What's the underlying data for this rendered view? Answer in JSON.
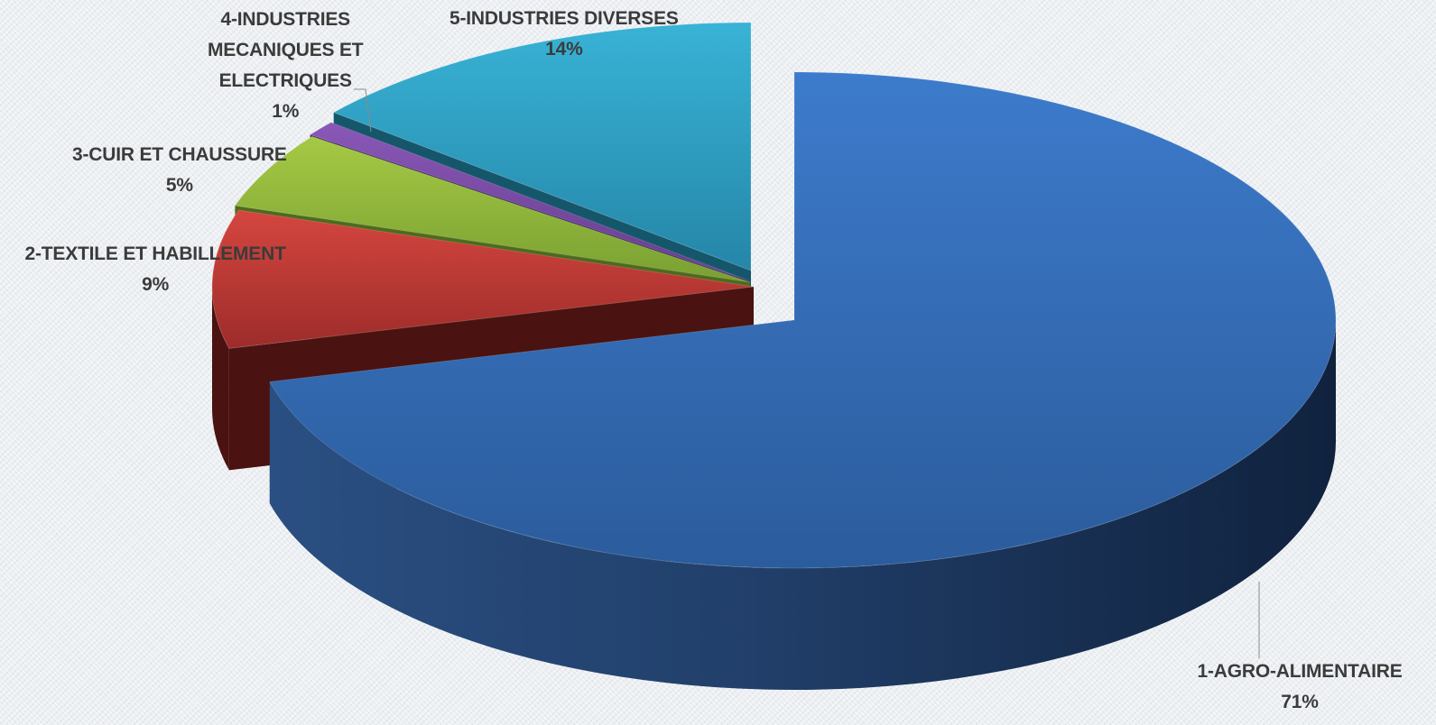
{
  "chart_data": {
    "type": "pie",
    "style": "3d-exploded",
    "categories": [
      "1-AGRO-ALIMENTAIRE",
      "2-TEXTILE ET HABILLEMENT",
      "3-CUIR ET  CHAUSSURE",
      "4-INDUSTRIES MECANIQUES ET ELECTRIQUES",
      "5-INDUSTRIES DIVERSES"
    ],
    "values": [
      71,
      9,
      5,
      1,
      14
    ],
    "percent_labels": [
      "71%",
      "9%",
      "5%",
      "1%",
      "14%"
    ],
    "label_lines": [
      [
        "1-AGRO-ALIMENTAIRE"
      ],
      [
        "2-TEXTILE ET HABILLEMENT"
      ],
      [
        "3-CUIR ET  CHAUSSURE"
      ],
      [
        "4-INDUSTRIES",
        "MECANIQUES ET",
        "ELECTRIQUES"
      ],
      [
        "5-INDUSTRIES DIVERSES"
      ]
    ],
    "colors": [
      "#3a72c0",
      "#c0393a",
      "#93b83c",
      "#7a4ba5",
      "#2fa8c8"
    ],
    "side_colors": [
      "#1a3458",
      "#4a1210",
      "#4e6a1c",
      "#3a2358",
      "#16566a"
    ],
    "exploded": [
      0,
      1,
      2,
      3,
      4
    ],
    "legend": "none",
    "title": ""
  }
}
